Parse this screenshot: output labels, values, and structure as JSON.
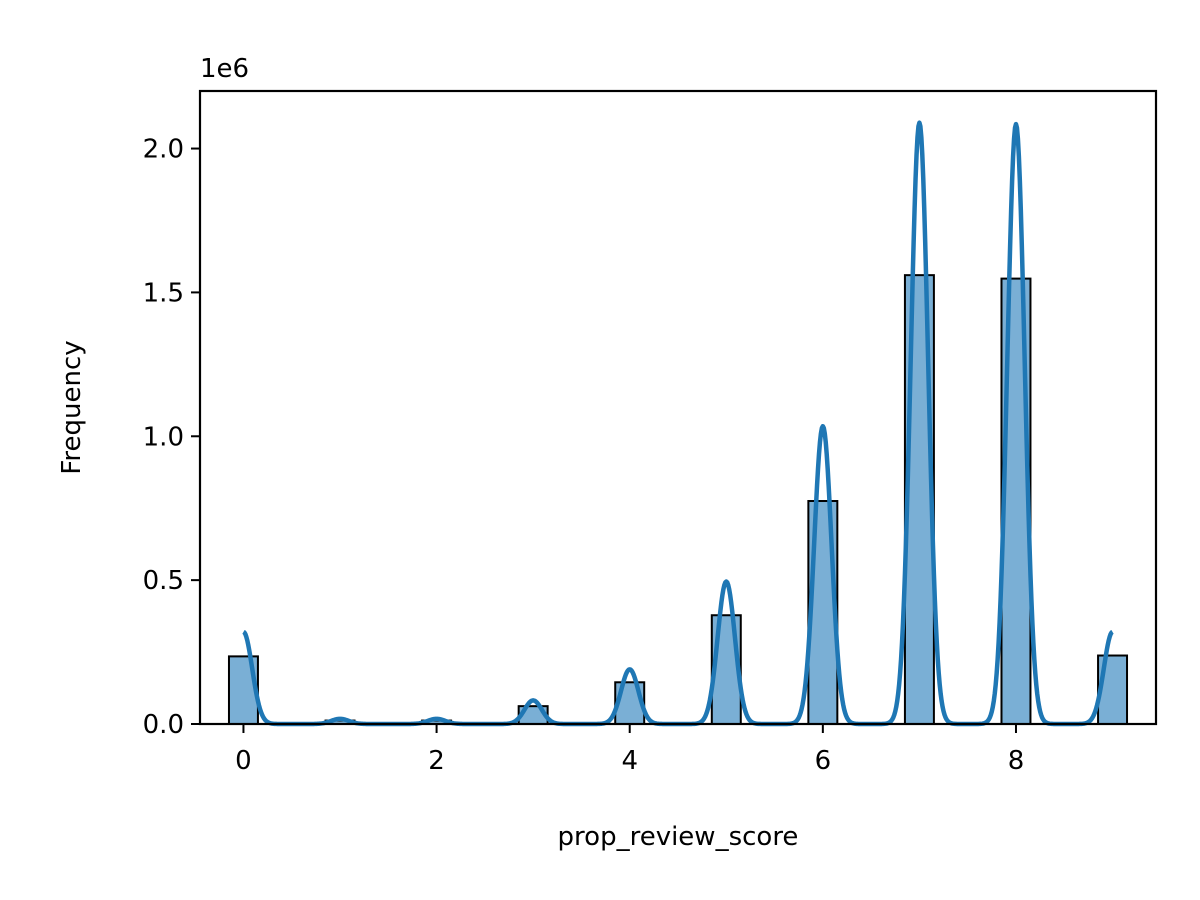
{
  "chart_data": {
    "type": "bar",
    "title": "",
    "xlabel": "prop_review_score",
    "ylabel": "Frequency",
    "y_offset_label": "1e6",
    "xlim": [
      -0.45,
      9.45
    ],
    "ylim": [
      0,
      2200000
    ],
    "x_ticks": [
      0,
      2,
      4,
      6,
      8
    ],
    "y_ticks": [
      0,
      500000,
      1000000,
      1500000,
      2000000
    ],
    "y_tick_labels": [
      "0.0",
      "0.5",
      "1.0",
      "1.5",
      "2.0"
    ],
    "bin_width": 0.3,
    "bins": [
      {
        "x": 0,
        "value": 235000
      },
      {
        "x": 1,
        "value": 12000
      },
      {
        "x": 2,
        "value": 12000
      },
      {
        "x": 3,
        "value": 62000
      },
      {
        "x": 4,
        "value": 145000
      },
      {
        "x": 5,
        "value": 378000
      },
      {
        "x": 6,
        "value": 775000
      },
      {
        "x": 7,
        "value": 1560000
      },
      {
        "x": 8,
        "value": 1548000
      },
      {
        "x": 9,
        "value": 238000
      }
    ],
    "kde": {
      "peaks": [
        {
          "x": 0,
          "value": 320000
        },
        {
          "x": 1,
          "value": 18000
        },
        {
          "x": 2,
          "value": 18000
        },
        {
          "x": 3,
          "value": 82000
        },
        {
          "x": 4,
          "value": 190000
        },
        {
          "x": 5,
          "value": 495000
        },
        {
          "x": 6,
          "value": 1035000
        },
        {
          "x": 7,
          "value": 2090000
        },
        {
          "x": 8,
          "value": 2085000
        },
        {
          "x": 9,
          "value": 320000
        }
      ],
      "sigma": 0.09
    },
    "grid": false,
    "colors": {
      "bar_fill": "#7aafd5",
      "bar_edge": "#000000",
      "kde_line": "#1f77b4"
    }
  }
}
